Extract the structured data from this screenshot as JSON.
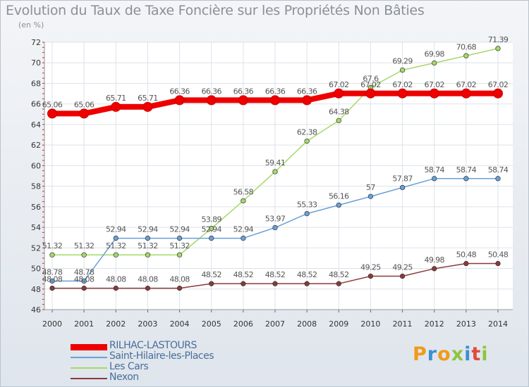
{
  "header": {
    "title": "Evolution du Taux de Taxe Foncière sur les Propriétés Non Bâties",
    "unit": "(en %)"
  },
  "logo": {
    "letters": [
      "P",
      "r",
      "o",
      "x",
      "i",
      "t",
      "i"
    ],
    "colors": [
      "#f19a1a",
      "#3d8fd1",
      "#f19a1a",
      "#8cc63f",
      "#3d8fd1",
      "#e04b3a",
      "#8cc63f"
    ]
  },
  "chart_data": {
    "type": "line",
    "title": "Evolution du Taux de Taxe Foncière sur les Propriétés Non Bâties",
    "ylabel": "(en %)",
    "xlabel": "",
    "x": [
      "2000",
      "2001",
      "2002",
      "2003",
      "2004",
      "2005",
      "2006",
      "2007",
      "2008",
      "2009",
      "2010",
      "2011",
      "2012",
      "2013",
      "2014"
    ],
    "ylim": [
      46,
      72
    ],
    "yticks": [
      "46",
      "48",
      "50",
      "52",
      "54",
      "56",
      "58",
      "60",
      "62",
      "64",
      "66",
      "68",
      "70",
      "72"
    ],
    "grid": true,
    "legend": "bottom-left",
    "series": [
      {
        "name": "RILHAC-LASTOURS",
        "color": "#ee0000",
        "width": 8,
        "values": [
          65.06,
          65.06,
          65.71,
          65.71,
          66.36,
          66.36,
          66.36,
          66.36,
          66.36,
          67.02,
          67.02,
          67.02,
          67.02,
          67.02,
          67.02
        ],
        "labels": [
          "65.06",
          "65.06",
          "65.71",
          "65.71",
          "66.36",
          "66.36",
          "66.36",
          "66.36",
          "66.36",
          "67.02",
          "67.02",
          "67.02",
          "67.02",
          "67.02",
          "67.02"
        ]
      },
      {
        "name": "Saint-Hilaire-les-Places",
        "color": "#6aa0d8",
        "width": 1.5,
        "values": [
          48.78,
          48.78,
          52.94,
          52.94,
          52.94,
          52.94,
          52.94,
          53.97,
          55.33,
          56.16,
          57,
          57.87,
          58.74,
          58.74,
          58.74
        ],
        "labels": [
          "48.78",
          "48.78",
          "52.94",
          "52.94",
          "52.94",
          "52.94",
          "52.94",
          "53.97",
          "55.33",
          "56.16",
          "57",
          "57.87",
          "58.74",
          "58.74",
          "58.74"
        ]
      },
      {
        "name": "Les Cars",
        "color": "#a6d86a",
        "width": 1.5,
        "values": [
          51.32,
          51.32,
          51.32,
          51.32,
          51.32,
          53.89,
          56.58,
          59.41,
          62.38,
          64.38,
          67.6,
          69.29,
          69.98,
          70.68,
          71.39
        ],
        "labels": [
          "51.32",
          "51.32",
          "51.32",
          "51.32",
          "51.32",
          "53.89",
          "56.58",
          "59.41",
          "62.38",
          "64.38",
          "67.6",
          "69.29",
          "69.98",
          "70.68",
          "71.39"
        ]
      },
      {
        "name": "Nexon",
        "color": "#8a3a3a",
        "width": 1.5,
        "values": [
          48.08,
          48.08,
          48.08,
          48.08,
          48.08,
          48.52,
          48.52,
          48.52,
          48.52,
          48.52,
          49.25,
          49.25,
          49.98,
          50.48,
          50.48
        ],
        "labels": [
          "48.08",
          "48.08",
          "48.08",
          "48.08",
          "48.08",
          "48.52",
          "48.52",
          "48.52",
          "48.52",
          "48.52",
          "49.25",
          "49.25",
          "49.98",
          "50.48",
          "50.48"
        ]
      }
    ]
  }
}
